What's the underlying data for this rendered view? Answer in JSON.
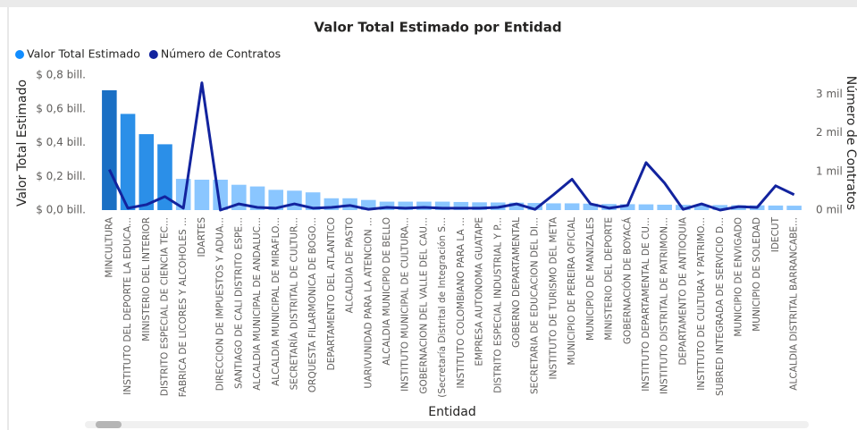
{
  "chart_data": {
    "type": "bar_line",
    "title": "Valor Total Estimado por Entidad",
    "x_label": "Entidad",
    "y_label": "Valor Total Estimado",
    "y2_label": "Número de Contratos",
    "categories": [
      "MINCULTURA",
      "INSTITUTO DEL DEPORTE LA EDUCA...",
      "MINISTERIO DEL INTERIOR",
      "DISTRITO ESPECIAL DE CIENCIA TEC...",
      "FABRICA DE LICORES Y ALCOHOLES ...",
      "IDARTES",
      "DIRECCION DE IMPUESTOS Y ADUA...",
      "SANTIAGO DE CALI DISTRITO ESPE...",
      "ALCALDIA MUNICIPAL DE ANDALUC...",
      "ALCALDIA MUNICIPAL DE MIRAFLO...",
      "SECRETARÍA DISTRITAL DE CULTUR...",
      "ORQUESTA FILARMONICA DE BOGO...",
      "DEPARTAMENTO DEL ATLANTICO",
      "ALCALDIA DE PASTO",
      "UARIVUNIDAD PARA LA ATENCION ...",
      "ALCALDIA MUNICIPIO DE BELLO",
      "INSTITUTO MUNICIPAL DE CULTURA...",
      "GOBERNACION DEL VALLE DEL CAU...",
      "(Secretaría Distrital de Integración S...",
      "INSTITUTO COLOMBIANO PARA LA ...",
      "EMPRESA AUTONOMA GUATAPE",
      "DISTRITO ESPECIAL INDUSTRIAL Y P...",
      "GOBERNO DEPARTAMENTAL",
      "SECRETARIA DE EDUCACION DEL DI...",
      "INSTITUTO DE TURISMO DEL META",
      "MUNICIPIO DE PEREIRA OFICIAL",
      "MUNICIPIO DE MANIZALES",
      "MINISTERIO DEL DEPORTE",
      "GOBERNACIÓN DE BOYACÁ",
      "INSTITUTO DEPARTAMENTAL DE CU...",
      "INSTITUTO DISTRITAL DE PATRIMON...",
      "DEPARTAMENTO DE ANTIOQUIA",
      "INSTITUTO DE CULTURA Y PATRIMO...",
      "SUBRED INTEGRADA DE SERVICIO D...",
      "MUNICIPIO DE ENVIGADO",
      "MUNICIPIO DE SOLEDAD",
      "IDECUT",
      "ALCALDIA DISTRITAL BARRANCABE..."
    ],
    "series": [
      {
        "name": "Valor Total Estimado",
        "type": "bar",
        "color": "#118dff",
        "colors": [
          "#1a6fc4",
          "#2b8fe8",
          "#2b8fe8",
          "#2b8fe8",
          "#8ac6ff",
          "#8ac6ff",
          "#8ac6ff",
          "#8ac6ff",
          "#8ac6ff",
          "#8ac6ff",
          "#8ac6ff",
          "#8ac6ff",
          "#8ac6ff",
          "#8ac6ff",
          "#8ac6ff",
          "#8ac6ff",
          "#8ac6ff",
          "#8ac6ff",
          "#8ac6ff",
          "#8ac6ff",
          "#8ac6ff",
          "#8ac6ff",
          "#8ac6ff",
          "#8ac6ff",
          "#8ac6ff",
          "#8ac6ff",
          "#8ac6ff",
          "#8ac6ff",
          "#8ac6ff",
          "#8ac6ff",
          "#8ac6ff",
          "#8ac6ff",
          "#8ac6ff",
          "#8ac6ff",
          "#8ac6ff",
          "#8ac6ff",
          "#8ac6ff",
          "#8ac6ff"
        ],
        "values": [
          0.71,
          0.57,
          0.45,
          0.39,
          0.185,
          0.18,
          0.18,
          0.15,
          0.14,
          0.12,
          0.115,
          0.105,
          0.07,
          0.07,
          0.06,
          0.05,
          0.05,
          0.05,
          0.05,
          0.048,
          0.046,
          0.045,
          0.044,
          0.042,
          0.04,
          0.04,
          0.038,
          0.036,
          0.035,
          0.034,
          0.032,
          0.031,
          0.03,
          0.03,
          0.029,
          0.028,
          0.027,
          0.026
        ]
      },
      {
        "name": "Número de Contratos",
        "type": "line",
        "axis": "y2",
        "color": "#12239e",
        "values": [
          1.05,
          0.05,
          0.14,
          0.35,
          0.05,
          3.3,
          0.0,
          0.16,
          0.07,
          0.05,
          0.16,
          0.05,
          0.07,
          0.12,
          0.02,
          0.07,
          0.05,
          0.07,
          0.05,
          0.05,
          0.05,
          0.07,
          0.16,
          0.02,
          0.4,
          0.8,
          0.16,
          0.05,
          0.12,
          1.23,
          0.7,
          0.02,
          0.16,
          0.0,
          0.09,
          0.07,
          0.63,
          0.4
        ]
      }
    ],
    "ylim": [
      0,
      0.8
    ],
    "yticks": [
      {
        "value": 0,
        "label": "$ 0,0 bill."
      },
      {
        "value": 0.2,
        "label": "$ 0,2 bill."
      },
      {
        "value": 0.4,
        "label": "$ 0,4 bill."
      },
      {
        "value": 0.6,
        "label": "$ 0,6 bill."
      },
      {
        "value": 0.8,
        "label": "$ 0,8 bill."
      }
    ],
    "y2lim": [
      0,
      3.5
    ],
    "y2ticks": [
      {
        "value": 0,
        "label": "0 mil"
      },
      {
        "value": 1,
        "label": "1 mil"
      },
      {
        "value": 2,
        "label": "2 mil"
      },
      {
        "value": 3,
        "label": "3 mil"
      }
    ],
    "grid": false,
    "legend": "top-left"
  }
}
